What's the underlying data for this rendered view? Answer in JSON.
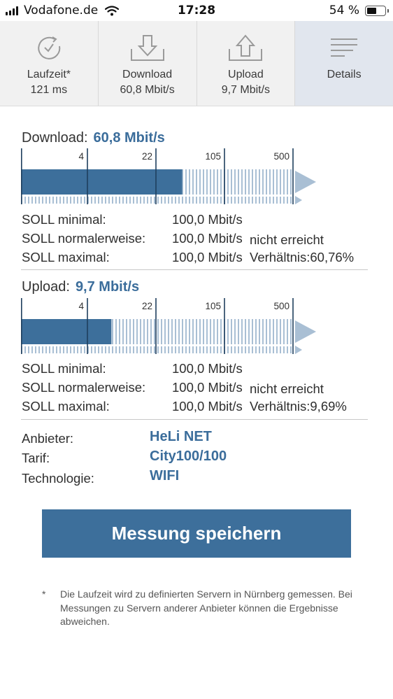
{
  "status": {
    "carrier": "Vodafone.de",
    "time": "17:28",
    "battery": "54 %"
  },
  "tabs": [
    {
      "label": "Laufzeit*",
      "value": "121 ms",
      "icon": "timer-icon"
    },
    {
      "label": "Download",
      "value": "60,8 Mbit/s",
      "icon": "download-icon"
    },
    {
      "label": "Upload",
      "value": "9,7 Mbit/s",
      "icon": "upload-icon"
    },
    {
      "label": "Details",
      "value": "",
      "icon": "details-menu-icon"
    }
  ],
  "download": {
    "title": "Download:",
    "value": "60,8 Mbit/s",
    "scale": [
      "4",
      "22",
      "105",
      "500"
    ],
    "fill_fraction": 0.59,
    "rows": [
      {
        "label": "SOLL minimal:",
        "value": "100,0 Mbit/s",
        "extra": ""
      },
      {
        "label": "SOLL normalerweise:",
        "value": "100,0 Mbit/s",
        "extra": "nicht erreicht"
      },
      {
        "label": "SOLL maximal:",
        "value": "100,0 Mbit/s",
        "extra": "Verhältnis:60,76%"
      }
    ]
  },
  "upload": {
    "title": "Upload:",
    "value": "9,7 Mbit/s",
    "scale": [
      "4",
      "22",
      "105",
      "500"
    ],
    "fill_fraction": 0.33,
    "rows": [
      {
        "label": "SOLL minimal:",
        "value": "100,0 Mbit/s",
        "extra": ""
      },
      {
        "label": "SOLL normalerweise:",
        "value": "100,0 Mbit/s",
        "extra": "nicht erreicht"
      },
      {
        "label": "SOLL maximal:",
        "value": "100,0 Mbit/s",
        "extra": "Verhältnis:9,69%"
      }
    ]
  },
  "info": [
    {
      "label": "Anbieter:",
      "value": "HeLi NET"
    },
    {
      "label": "Tarif:",
      "value": "City100/100"
    },
    {
      "label": "Technologie:",
      "value": "WIFI"
    }
  ],
  "save_label": "Messung speichern",
  "footnote": {
    "star": "*",
    "text": "Die Laufzeit wird zu definierten Servern in Nürnberg gemessen. Bei Messungen zu Servern anderer Anbieter können die Ergebnisse abweichen."
  },
  "colors": {
    "accent": "#3d6f9b",
    "value_text": "#3b6d9b",
    "active_tab": "#e1e6ee",
    "stripe": "#a9bfd4"
  }
}
